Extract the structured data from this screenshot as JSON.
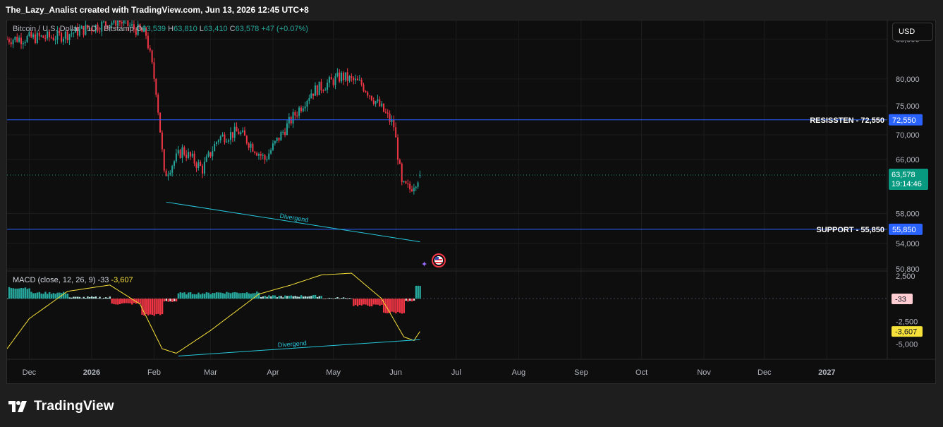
{
  "header": {
    "title": "The_Lazy_Analist created with TradingView.com, Jun 13, 2026 12:45 UTC+8"
  },
  "legend": {
    "symbol": "Bitcoin / U.S. Dollar · 1D · Bitstamp",
    "o_label": "O",
    "o": "63,539",
    "h_label": "H",
    "h": "63,810",
    "l_label": "L",
    "l": "63,410",
    "c_label": "C",
    "c": "63,578",
    "change": "+47 (+0.07%)"
  },
  "currency_button": "USD",
  "price_axis": {
    "labels": [
      "88,000",
      "80,000",
      "75,000",
      "70,000",
      "66,000",
      "58,000",
      "54,000",
      "50,800"
    ],
    "current_price": "63,578",
    "countdown": "19:14:46"
  },
  "levels": {
    "resistance": {
      "label": "RESISSTEN - 72,550",
      "badge": "72,550",
      "value": 72550
    },
    "support": {
      "label": "SUPPORT - 55,850",
      "badge": "55,850",
      "value": 55850
    }
  },
  "annotations": {
    "price_divergence": "Divergend",
    "macd_divergence": "Divergend"
  },
  "macd": {
    "title": "MACD (close, 12, 26, 9)",
    "hist_value": "-33",
    "signal_value": "-3,607",
    "axis_labels": [
      "2,500",
      "-2,500",
      "-5,000"
    ],
    "badge_hist": "-33",
    "badge_signal": "-3,607"
  },
  "time_axis": {
    "labels": [
      "Dec",
      "2026",
      "Feb",
      "Mar",
      "Apr",
      "May",
      "Jun",
      "Jul",
      "Aug",
      "Sep",
      "Oct",
      "Nov",
      "Dec",
      "2027"
    ]
  },
  "footer": {
    "brand": "TradingView"
  },
  "colors": {
    "up": "#26a69a",
    "down": "#f23645",
    "level_line": "#2962ff",
    "macd_line": "#f6e03a",
    "divergence": "#26c6da",
    "current_price": "#089981"
  },
  "chart_data": {
    "type": "candlestick",
    "symbol": "Bitcoin / U.S. Dollar",
    "interval": "1D",
    "price_anchors": [
      {
        "date": "2025-11-20",
        "close": 88000
      },
      {
        "date": "2025-12-15",
        "close": 88500
      },
      {
        "date": "2026-01-14",
        "close": 92000
      },
      {
        "date": "2026-01-28",
        "close": 89000
      },
      {
        "date": "2026-02-02",
        "close": 78000
      },
      {
        "date": "2026-02-06",
        "close": 63500
      },
      {
        "date": "2026-02-15",
        "close": 67500
      },
      {
        "date": "2026-02-25",
        "close": 64500
      },
      {
        "date": "2026-03-05",
        "close": 69500
      },
      {
        "date": "2026-03-15",
        "close": 70500
      },
      {
        "date": "2026-03-28",
        "close": 66000
      },
      {
        "date": "2026-04-10",
        "close": 72500
      },
      {
        "date": "2026-04-20",
        "close": 77500
      },
      {
        "date": "2026-05-05",
        "close": 80500
      },
      {
        "date": "2026-05-15",
        "close": 79000
      },
      {
        "date": "2026-05-25",
        "close": 74500
      },
      {
        "date": "2026-05-31",
        "close": 71500
      },
      {
        "date": "2026-06-04",
        "close": 62000
      },
      {
        "date": "2026-06-08",
        "close": 61500
      },
      {
        "date": "2026-06-13",
        "close": 63578
      }
    ],
    "macd_signal_anchors": [
      {
        "date": "2025-11-20",
        "value": -5500
      },
      {
        "date": "2025-12-01",
        "value": -2200
      },
      {
        "date": "2025-12-20",
        "value": 800
      },
      {
        "date": "2026-01-10",
        "value": 1500
      },
      {
        "date": "2026-01-25",
        "value": -600
      },
      {
        "date": "2026-02-05",
        "value": -5500
      },
      {
        "date": "2026-02-12",
        "value": -6000
      },
      {
        "date": "2026-03-01",
        "value": -3500
      },
      {
        "date": "2026-03-25",
        "value": 500
      },
      {
        "date": "2026-04-10",
        "value": 1500
      },
      {
        "date": "2026-04-25",
        "value": 2600
      },
      {
        "date": "2026-05-10",
        "value": 2800
      },
      {
        "date": "2026-05-25",
        "value": 0
      },
      {
        "date": "2026-06-05",
        "value": -4200
      },
      {
        "date": "2026-06-10",
        "value": -4600
      },
      {
        "date": "2026-06-13",
        "value": -3607
      }
    ],
    "price_divergence_line": {
      "from": {
        "date": "2026-02-07",
        "price": 59600
      },
      "to": {
        "date": "2026-06-13",
        "price": 54200
      }
    },
    "macd_divergence_line": {
      "from": {
        "date": "2026-02-13",
        "value": -6300
      },
      "to": {
        "date": "2026-06-13",
        "value": -4500
      }
    },
    "y_range": [
      50800,
      92000
    ],
    "macd_range": [
      -6500,
      2800
    ],
    "x_range": [
      "2025-11-20",
      "2027-01-31"
    ]
  }
}
